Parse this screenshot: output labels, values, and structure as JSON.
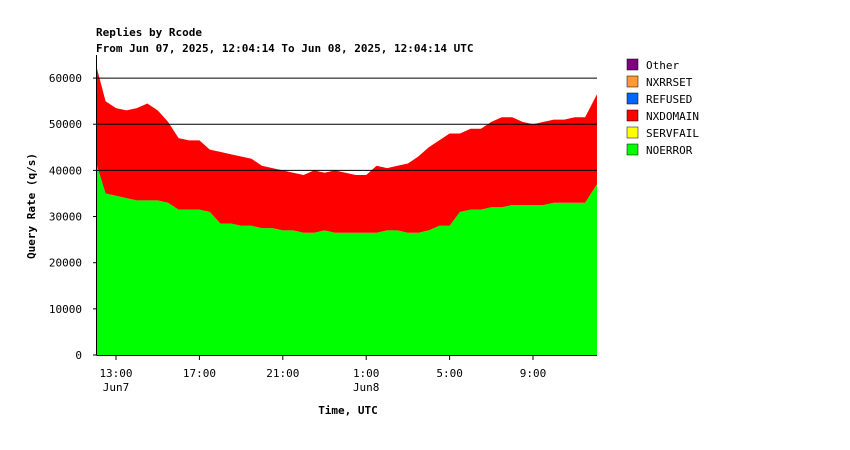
{
  "chart_data": {
    "type": "area",
    "stacked": true,
    "title": "Replies by Rcode",
    "subtitle": "From Jun 07, 2025, 12:04:14 To Jun 08, 2025, 12:04:14 UTC",
    "xlabel": "Time, UTC",
    "ylabel": "Query Rate (q/s)",
    "ylim": [
      0,
      65000
    ],
    "y_ticks": [
      "0",
      "10000",
      "20000",
      "30000",
      "40000",
      "50000",
      "60000"
    ],
    "y_tick_values": [
      0,
      10000,
      20000,
      30000,
      40000,
      50000,
      60000
    ],
    "y_gridlines": [
      40000,
      50000,
      60000
    ],
    "xlim_hours": [
      12.07,
      36.07
    ],
    "x_ticks": [
      {
        "label": "13:00",
        "hour": 13,
        "date_label": "Jun7"
      },
      {
        "label": "17:00",
        "hour": 17,
        "date_label": ""
      },
      {
        "label": "21:00",
        "hour": 21,
        "date_label": ""
      },
      {
        "label": "1:00",
        "hour": 25,
        "date_label": "Jun8"
      },
      {
        "label": "5:00",
        "hour": 29,
        "date_label": ""
      },
      {
        "label": "9:00",
        "hour": 33,
        "date_label": ""
      }
    ],
    "legend_position": "right",
    "x": [
      12.07,
      12.5,
      13,
      13.5,
      14,
      14.5,
      15,
      15.5,
      16,
      16.5,
      17,
      17.5,
      18,
      18.5,
      19,
      19.5,
      20,
      20.5,
      21,
      21.5,
      22,
      22.5,
      23,
      23.5,
      24,
      24.5,
      25,
      25.5,
      26,
      26.5,
      27,
      27.5,
      28,
      28.5,
      29,
      29.5,
      30,
      30.5,
      31,
      31.5,
      32,
      32.5,
      33,
      33.5,
      34,
      34.5,
      35,
      35.5,
      36.07
    ],
    "series": [
      {
        "name": "NOERROR",
        "color": "#00ff00",
        "values": [
          41000,
          35000,
          34500,
          34000,
          33500,
          33500,
          33500,
          33000,
          31500,
          31500,
          31500,
          31000,
          28500,
          28500,
          28000,
          28000,
          27500,
          27500,
          27000,
          27000,
          26500,
          26500,
          27000,
          26500,
          26500,
          26500,
          26500,
          26500,
          27000,
          27000,
          26500,
          26500,
          27000,
          28000,
          28000,
          31000,
          31500,
          31500,
          32000,
          32000,
          32500,
          32500,
          32500,
          32500,
          33000,
          33000,
          33000,
          33000,
          37000
        ]
      },
      {
        "name": "SERVFAIL",
        "color": "#ffff00",
        "values": [
          0,
          0,
          0,
          0,
          0,
          0,
          0,
          0,
          0,
          0,
          0,
          0,
          0,
          0,
          0,
          0,
          0,
          0,
          0,
          0,
          0,
          0,
          0,
          0,
          0,
          0,
          0,
          0,
          0,
          0,
          0,
          0,
          0,
          0,
          0,
          0,
          0,
          0,
          0,
          0,
          0,
          0,
          0,
          0,
          0,
          0,
          0,
          0,
          0
        ]
      },
      {
        "name": "NXDOMAIN",
        "color": "#ff0000",
        "values": [
          21000,
          20000,
          19000,
          19000,
          20000,
          21000,
          19500,
          17500,
          15500,
          15000,
          15000,
          13500,
          15500,
          15000,
          15000,
          14500,
          13500,
          13000,
          13000,
          12500,
          12500,
          13500,
          12500,
          13500,
          13000,
          12500,
          12500,
          14500,
          13500,
          14000,
          15000,
          16500,
          18000,
          18500,
          20000,
          17000,
          17500,
          17500,
          18500,
          19500,
          19000,
          18000,
          17500,
          18000,
          18000,
          18000,
          18500,
          18500,
          19500
        ]
      },
      {
        "name": "REFUSED",
        "color": "#0066ff",
        "values": [
          0,
          0,
          0,
          0,
          0,
          0,
          0,
          0,
          0,
          0,
          0,
          0,
          0,
          0,
          0,
          0,
          0,
          0,
          0,
          0,
          0,
          0,
          0,
          0,
          0,
          0,
          0,
          0,
          0,
          0,
          0,
          0,
          0,
          0,
          0,
          0,
          0,
          0,
          0,
          0,
          0,
          0,
          0,
          0,
          0,
          0,
          0,
          0,
          0
        ]
      },
      {
        "name": "NXRRSET",
        "color": "#ff9933",
        "values": [
          0,
          0,
          0,
          0,
          0,
          0,
          0,
          0,
          0,
          0,
          0,
          0,
          0,
          0,
          0,
          0,
          0,
          0,
          0,
          0,
          0,
          0,
          0,
          0,
          0,
          0,
          0,
          0,
          0,
          0,
          0,
          0,
          0,
          0,
          0,
          0,
          0,
          0,
          0,
          0,
          0,
          0,
          0,
          0,
          0,
          0,
          0,
          0,
          0
        ]
      },
      {
        "name": "Other",
        "color": "#800080",
        "values": [
          0,
          0,
          0,
          0,
          0,
          0,
          0,
          0,
          0,
          0,
          0,
          0,
          0,
          0,
          0,
          0,
          0,
          0,
          0,
          0,
          0,
          0,
          0,
          0,
          0,
          0,
          0,
          0,
          0,
          0,
          0,
          0,
          0,
          0,
          0,
          0,
          0,
          0,
          0,
          0,
          0,
          0,
          0,
          0,
          0,
          0,
          0,
          0,
          0
        ]
      }
    ],
    "legend": [
      {
        "name": "Other",
        "color": "#800080"
      },
      {
        "name": "NXRRSET",
        "color": "#ff9933"
      },
      {
        "name": "REFUSED",
        "color": "#0066ff"
      },
      {
        "name": "NXDOMAIN",
        "color": "#ff0000"
      },
      {
        "name": "SERVFAIL",
        "color": "#ffff00"
      },
      {
        "name": "NOERROR",
        "color": "#00ff00"
      }
    ]
  }
}
